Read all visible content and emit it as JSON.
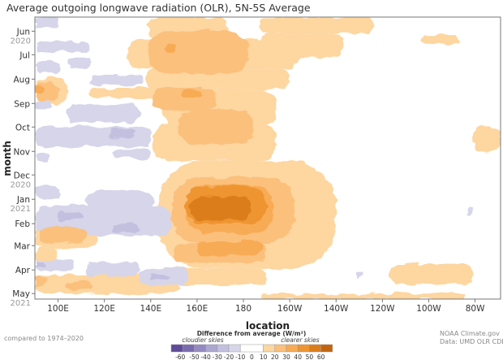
{
  "title": "Average outgoing longwave radiation (OLR), 5N-5S Average",
  "footer_left": "compared to 1974–2020",
  "credit_line1": "NOAA Climate.gov",
  "credit_line2": "Data: UMD OLR CDR",
  "legend": {
    "title": "Difference from average (W/m²)",
    "left_note": "cloudier skies",
    "right_note": "clearer skies",
    "bins": [
      {
        "color": "#5f4b98"
      },
      {
        "color": "#7a6aae"
      },
      {
        "color": "#9489c1"
      },
      {
        "color": "#aca6d1"
      },
      {
        "color": "#c3c0df"
      },
      {
        "color": "#d6d5ea"
      },
      {
        "color": "#ffffff"
      },
      {
        "color": "#fdd6a0"
      },
      {
        "color": "#fbc07c"
      },
      {
        "color": "#f8ab55"
      },
      {
        "color": "#ee9532"
      },
      {
        "color": "#dc7d1c"
      },
      {
        "color": "#c2640f"
      }
    ],
    "labels": [
      "-60",
      "-50",
      "-40",
      "-30",
      "-20",
      "-10",
      "0",
      "10",
      "20",
      "30",
      "40",
      "50",
      "60"
    ]
  },
  "chart_data": {
    "type": "heatmap",
    "title": "Average outgoing longwave radiation (OLR), 5N-5S Average",
    "xlabel": "location",
    "ylabel": "month",
    "xlim": [
      90,
      291
    ],
    "ylim": [
      "2020-05-14",
      "2021-05-08"
    ],
    "value_unit": "W/m²",
    "level_colors": {
      "-60": "#5f4b98",
      "-50": "#7a6aae",
      "-40": "#9489c1",
      "-30": "#aca6d1",
      "-20": "#c3c0df",
      "-10": "#d6d5ea",
      "10": "#fdd6a0",
      "20": "#fbc07c",
      "30": "#f8ab55",
      "40": "#ee9532",
      "50": "#dc7d1c",
      "60": "#c2640f"
    },
    "x_ticks": [
      {
        "lon": 100,
        "label": "100E"
      },
      {
        "lon": 120,
        "label": "120E"
      },
      {
        "lon": 140,
        "label": "140E"
      },
      {
        "lon": 160,
        "label": "160E"
      },
      {
        "lon": 180,
        "label": "180"
      },
      {
        "lon": 200,
        "label": "160W"
      },
      {
        "lon": 220,
        "label": "140W"
      },
      {
        "lon": 240,
        "label": "120W"
      },
      {
        "lon": 260,
        "label": "100W"
      },
      {
        "lon": 280,
        "label": "80W"
      }
    ],
    "y_ticks": [
      {
        "date": "2020-06-01",
        "label": "Jun",
        "year": "2020"
      },
      {
        "date": "2020-07-01",
        "label": "Jul"
      },
      {
        "date": "2020-08-01",
        "label": "Aug"
      },
      {
        "date": "2020-09-01",
        "label": "Sep"
      },
      {
        "date": "2020-10-01",
        "label": "Oct"
      },
      {
        "date": "2020-11-01",
        "label": "Nov"
      },
      {
        "date": "2020-12-01",
        "label": "Dec",
        "year": "2020"
      },
      {
        "date": "2021-01-01",
        "label": "Jan",
        "year": "2021"
      },
      {
        "date": "2021-02-01",
        "label": "Feb"
      },
      {
        "date": "2021-03-01",
        "label": "Mar"
      },
      {
        "date": "2021-04-01",
        "label": "Apr"
      },
      {
        "date": "2021-05-01",
        "label": "May",
        "year": "2021"
      }
    ],
    "anomaly_regions_columns": [
      "lon_from",
      "lon_to",
      "date_from",
      "date_to",
      "value"
    ],
    "anomaly_regions": [
      [
        139,
        173,
        "2020-05-14",
        "2020-06-11",
        10
      ],
      [
        130,
        204,
        "2020-06-11",
        "2020-07-19",
        10
      ],
      [
        138,
        200,
        "2020-07-19",
        "2020-08-14",
        10
      ],
      [
        114,
        165,
        "2020-08-12",
        "2020-08-25",
        10
      ],
      [
        145,
        194,
        "2020-08-14",
        "2020-09-30",
        10
      ],
      [
        141,
        194,
        "2020-09-25",
        "2020-11-13",
        10
      ],
      [
        143,
        220,
        "2020-11-13",
        "2021-03-30",
        10
      ],
      [
        141,
        190,
        "2021-03-30",
        "2021-04-20",
        10
      ],
      [
        187,
        236,
        "2020-05-14",
        "2020-06-04",
        10
      ],
      [
        187,
        223,
        "2020-06-04",
        "2020-07-05",
        10
      ],
      [
        90,
        104,
        "2020-07-30",
        "2020-09-02",
        10
      ],
      [
        90,
        117,
        "2021-02-04",
        "2021-03-04",
        10
      ],
      [
        90,
        100,
        "2021-03-04",
        "2021-03-22",
        10
      ],
      [
        90,
        152,
        "2021-04-07",
        "2021-05-01",
        10
      ],
      [
        243,
        279,
        "2021-03-24",
        "2021-04-19",
        10
      ],
      [
        257,
        273,
        "2020-06-06",
        "2020-06-18",
        10
      ],
      [
        279,
        291,
        "2020-09-30",
        "2020-11-03",
        10
      ],
      [
        187,
        276,
        "2021-05-01",
        "2021-05-08",
        10
      ],
      [
        139,
        182,
        "2020-06-01",
        "2020-07-25",
        20
      ],
      [
        141,
        168,
        "2020-08-12",
        "2020-09-09",
        20
      ],
      [
        152,
        184,
        "2020-09-09",
        "2020-10-23",
        20
      ],
      [
        149,
        202,
        "2020-12-04",
        "2021-02-26",
        20
      ],
      [
        150,
        190,
        "2021-02-26",
        "2021-03-22",
        20
      ],
      [
        92,
        112,
        "2021-02-06",
        "2021-02-26",
        20
      ],
      [
        90,
        100,
        "2020-08-04",
        "2020-08-30",
        20
      ],
      [
        90,
        95,
        "2021-04-09",
        "2021-04-22",
        20
      ],
      [
        103,
        114,
        "2021-04-16",
        "2021-04-26",
        20
      ],
      [
        146,
        151,
        "2020-06-18",
        "2020-06-28",
        30
      ],
      [
        153,
        162,
        "2020-08-15",
        "2020-08-25",
        30
      ],
      [
        155,
        193,
        "2020-12-14",
        "2021-02-13",
        30
      ],
      [
        160,
        188,
        "2021-02-23",
        "2021-03-14",
        30
      ],
      [
        90,
        94,
        "2020-08-09",
        "2020-08-19",
        30
      ],
      [
        155,
        190,
        "2020-12-16",
        "2021-02-01",
        40
      ],
      [
        157,
        183,
        "2020-12-28",
        "2021-01-28",
        50
      ],
      [
        90,
        101,
        "2020-05-14",
        "2020-05-28",
        -10
      ],
      [
        91,
        114,
        "2020-06-14",
        "2020-06-28",
        -10
      ],
      [
        104,
        114,
        "2020-07-05",
        "2020-07-19",
        -10
      ],
      [
        91,
        101,
        "2020-07-09",
        "2020-07-25",
        -10
      ],
      [
        114,
        137,
        "2020-07-27",
        "2020-08-09",
        -10
      ],
      [
        90,
        97,
        "2020-08-30",
        "2020-09-09",
        -10
      ],
      [
        104,
        135,
        "2020-09-02",
        "2020-09-25",
        -10
      ],
      [
        90,
        140,
        "2020-09-30",
        "2020-10-26",
        -10
      ],
      [
        122,
        133,
        "2020-10-03",
        "2020-10-16",
        -20
      ],
      [
        124,
        140,
        "2020-10-29",
        "2020-11-10",
        -10
      ],
      [
        90,
        96,
        "2020-11-04",
        "2020-11-13",
        -10
      ],
      [
        90,
        101,
        "2020-12-16",
        "2020-12-30",
        -10
      ],
      [
        112,
        141,
        "2020-12-21",
        "2021-01-16",
        -10
      ],
      [
        90,
        149,
        "2021-01-09",
        "2021-02-16",
        -10
      ],
      [
        100,
        111,
        "2021-01-16",
        "2021-01-28",
        -20
      ],
      [
        124,
        135,
        "2021-02-01",
        "2021-02-13",
        -20
      ],
      [
        90,
        107,
        "2021-03-19",
        "2021-04-02",
        -10
      ],
      [
        90,
        95,
        "2021-03-22",
        "2021-03-30",
        -20
      ],
      [
        112,
        135,
        "2021-03-22",
        "2021-04-09",
        -10
      ],
      [
        135,
        156,
        "2021-03-30",
        "2021-04-20",
        -10
      ],
      [
        140,
        148,
        "2021-04-07",
        "2021-04-14",
        -20
      ],
      [
        277,
        279,
        "2021-01-11",
        "2021-01-23",
        -10
      ],
      [
        229,
        232,
        "2021-04-05",
        "2021-04-09",
        -10
      ]
    ]
  }
}
